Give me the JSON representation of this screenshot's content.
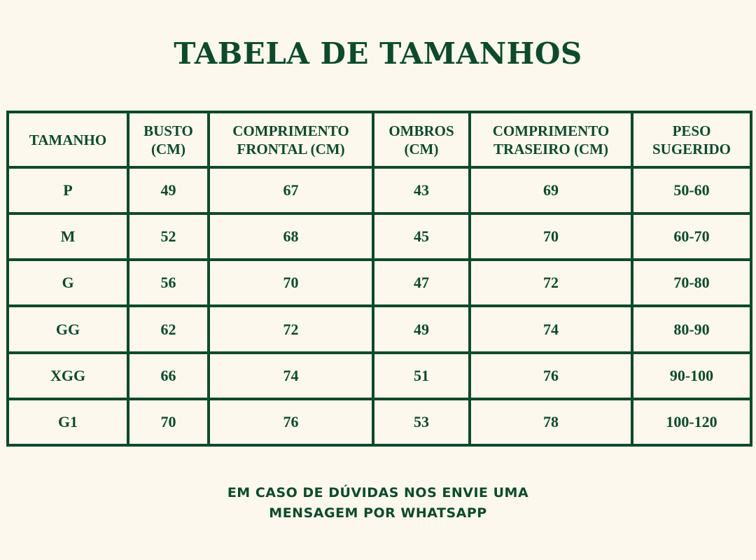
{
  "title": "TABELA DE TAMANHOS",
  "table": {
    "headers": [
      [
        "TAMANHO"
      ],
      [
        "BUSTO",
        "(CM)"
      ],
      [
        "COMPRIMENTO",
        "FRONTAL (CM)"
      ],
      [
        "OMBROS",
        "(CM)"
      ],
      [
        "COMPRIMENTO",
        "TRASEIRO (CM)"
      ],
      [
        "PESO",
        "SUGERIDO"
      ]
    ],
    "rows": [
      [
        "P",
        "49",
        "67",
        "43",
        "69",
        "50-60"
      ],
      [
        "M",
        "52",
        "68",
        "45",
        "70",
        "60-70"
      ],
      [
        "G",
        "56",
        "70",
        "47",
        "72",
        "70-80"
      ],
      [
        "GG",
        "62",
        "72",
        "49",
        "74",
        "80-90"
      ],
      [
        "XGG",
        "66",
        "74",
        "51",
        "76",
        "90-100"
      ],
      [
        "G1",
        "70",
        "76",
        "53",
        "78",
        "100-120"
      ]
    ]
  },
  "footer": {
    "line1": "EM CASO DE DÚVIDAS NOS ENVIE UMA",
    "line2": "MENSAGEM POR WHATSAPP"
  },
  "colors": {
    "accent": "#0d4a2b",
    "background": "#fdf8ee"
  }
}
